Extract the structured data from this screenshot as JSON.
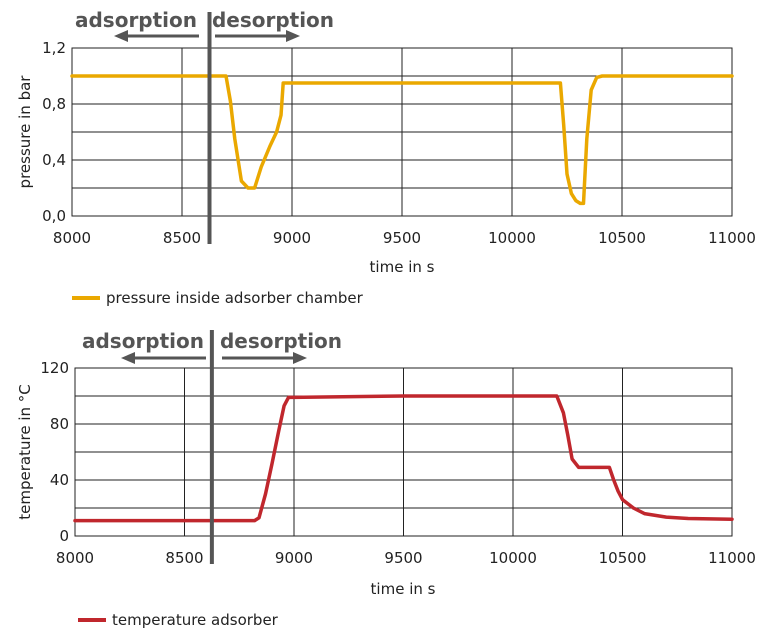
{
  "colors": {
    "pressure": "#eaa800",
    "temperature": "#c0272d",
    "phase": "#555555",
    "divider": "#555555",
    "grid": "#222222"
  },
  "chart_data": [
    {
      "type": "line",
      "xlabel": "time in s",
      "ylabel": "pressure in bar",
      "xlim": [
        8000,
        11000
      ],
      "ylim": [
        0,
        1.2
      ],
      "xticks": [
        8000,
        8500,
        9000,
        9500,
        10000,
        10500,
        11000
      ],
      "xtick_labels": [
        "8000",
        "8500",
        "9000",
        "9500",
        "10000",
        "10500",
        "11000"
      ],
      "yticks": [
        0,
        0.4,
        0.8,
        1.2
      ],
      "ytick_labels": [
        "0,0",
        "0,4",
        "0,8",
        "1,2"
      ],
      "grid": true,
      "phase_divider_x": 8625,
      "phases": {
        "left": "adsorption",
        "right": "desorption"
      },
      "legend_position": "bottom-left",
      "series": [
        {
          "name": "pressure inside adsorber chamber",
          "color": "#eaa800",
          "x": [
            8000,
            8700,
            8720,
            8740,
            8770,
            8800,
            8830,
            8860,
            8900,
            8930,
            8950,
            8960,
            10220,
            10235,
            10250,
            10270,
            10290,
            10310,
            10325,
            10340,
            10360,
            10385,
            10410,
            10450,
            11000
          ],
          "y": [
            1.0,
            1.0,
            0.82,
            0.55,
            0.25,
            0.2,
            0.2,
            0.35,
            0.5,
            0.6,
            0.72,
            0.95,
            0.95,
            0.65,
            0.3,
            0.16,
            0.11,
            0.09,
            0.09,
            0.55,
            0.9,
            0.99,
            1.0,
            1.0,
            1.0
          ]
        }
      ]
    },
    {
      "type": "line",
      "xlabel": "time in s",
      "ylabel": "temperature in °C",
      "xlim": [
        8000,
        11000
      ],
      "ylim": [
        0,
        120
      ],
      "xticks": [
        8000,
        8500,
        9000,
        9500,
        10000,
        10500,
        11000
      ],
      "xtick_labels": [
        "8000",
        "8500",
        "9000",
        "9500",
        "10000",
        "10500",
        "11000"
      ],
      "yticks": [
        0,
        40,
        80,
        120
      ],
      "ytick_labels": [
        "0",
        "40",
        "80",
        "120"
      ],
      "grid": true,
      "phase_divider_x": 8625,
      "phases": {
        "left": "adsorption",
        "right": "desorption"
      },
      "legend_position": "bottom-left",
      "series": [
        {
          "name": "temperature adsorber",
          "color": "#c0272d",
          "x": [
            8000,
            8820,
            8840,
            8870,
            8900,
            8930,
            8955,
            8975,
            9000,
            9500,
            10200,
            10230,
            10250,
            10270,
            10300,
            10340,
            10440,
            10460,
            10480,
            10500,
            10550,
            10600,
            10700,
            10800,
            11000
          ],
          "y": [
            11,
            11,
            13,
            30,
            52,
            75,
            93,
            99,
            99,
            100,
            100,
            88,
            72,
            55,
            49,
            49,
            49,
            40,
            32,
            26,
            20,
            16,
            13.5,
            12.5,
            12
          ]
        }
      ]
    }
  ]
}
